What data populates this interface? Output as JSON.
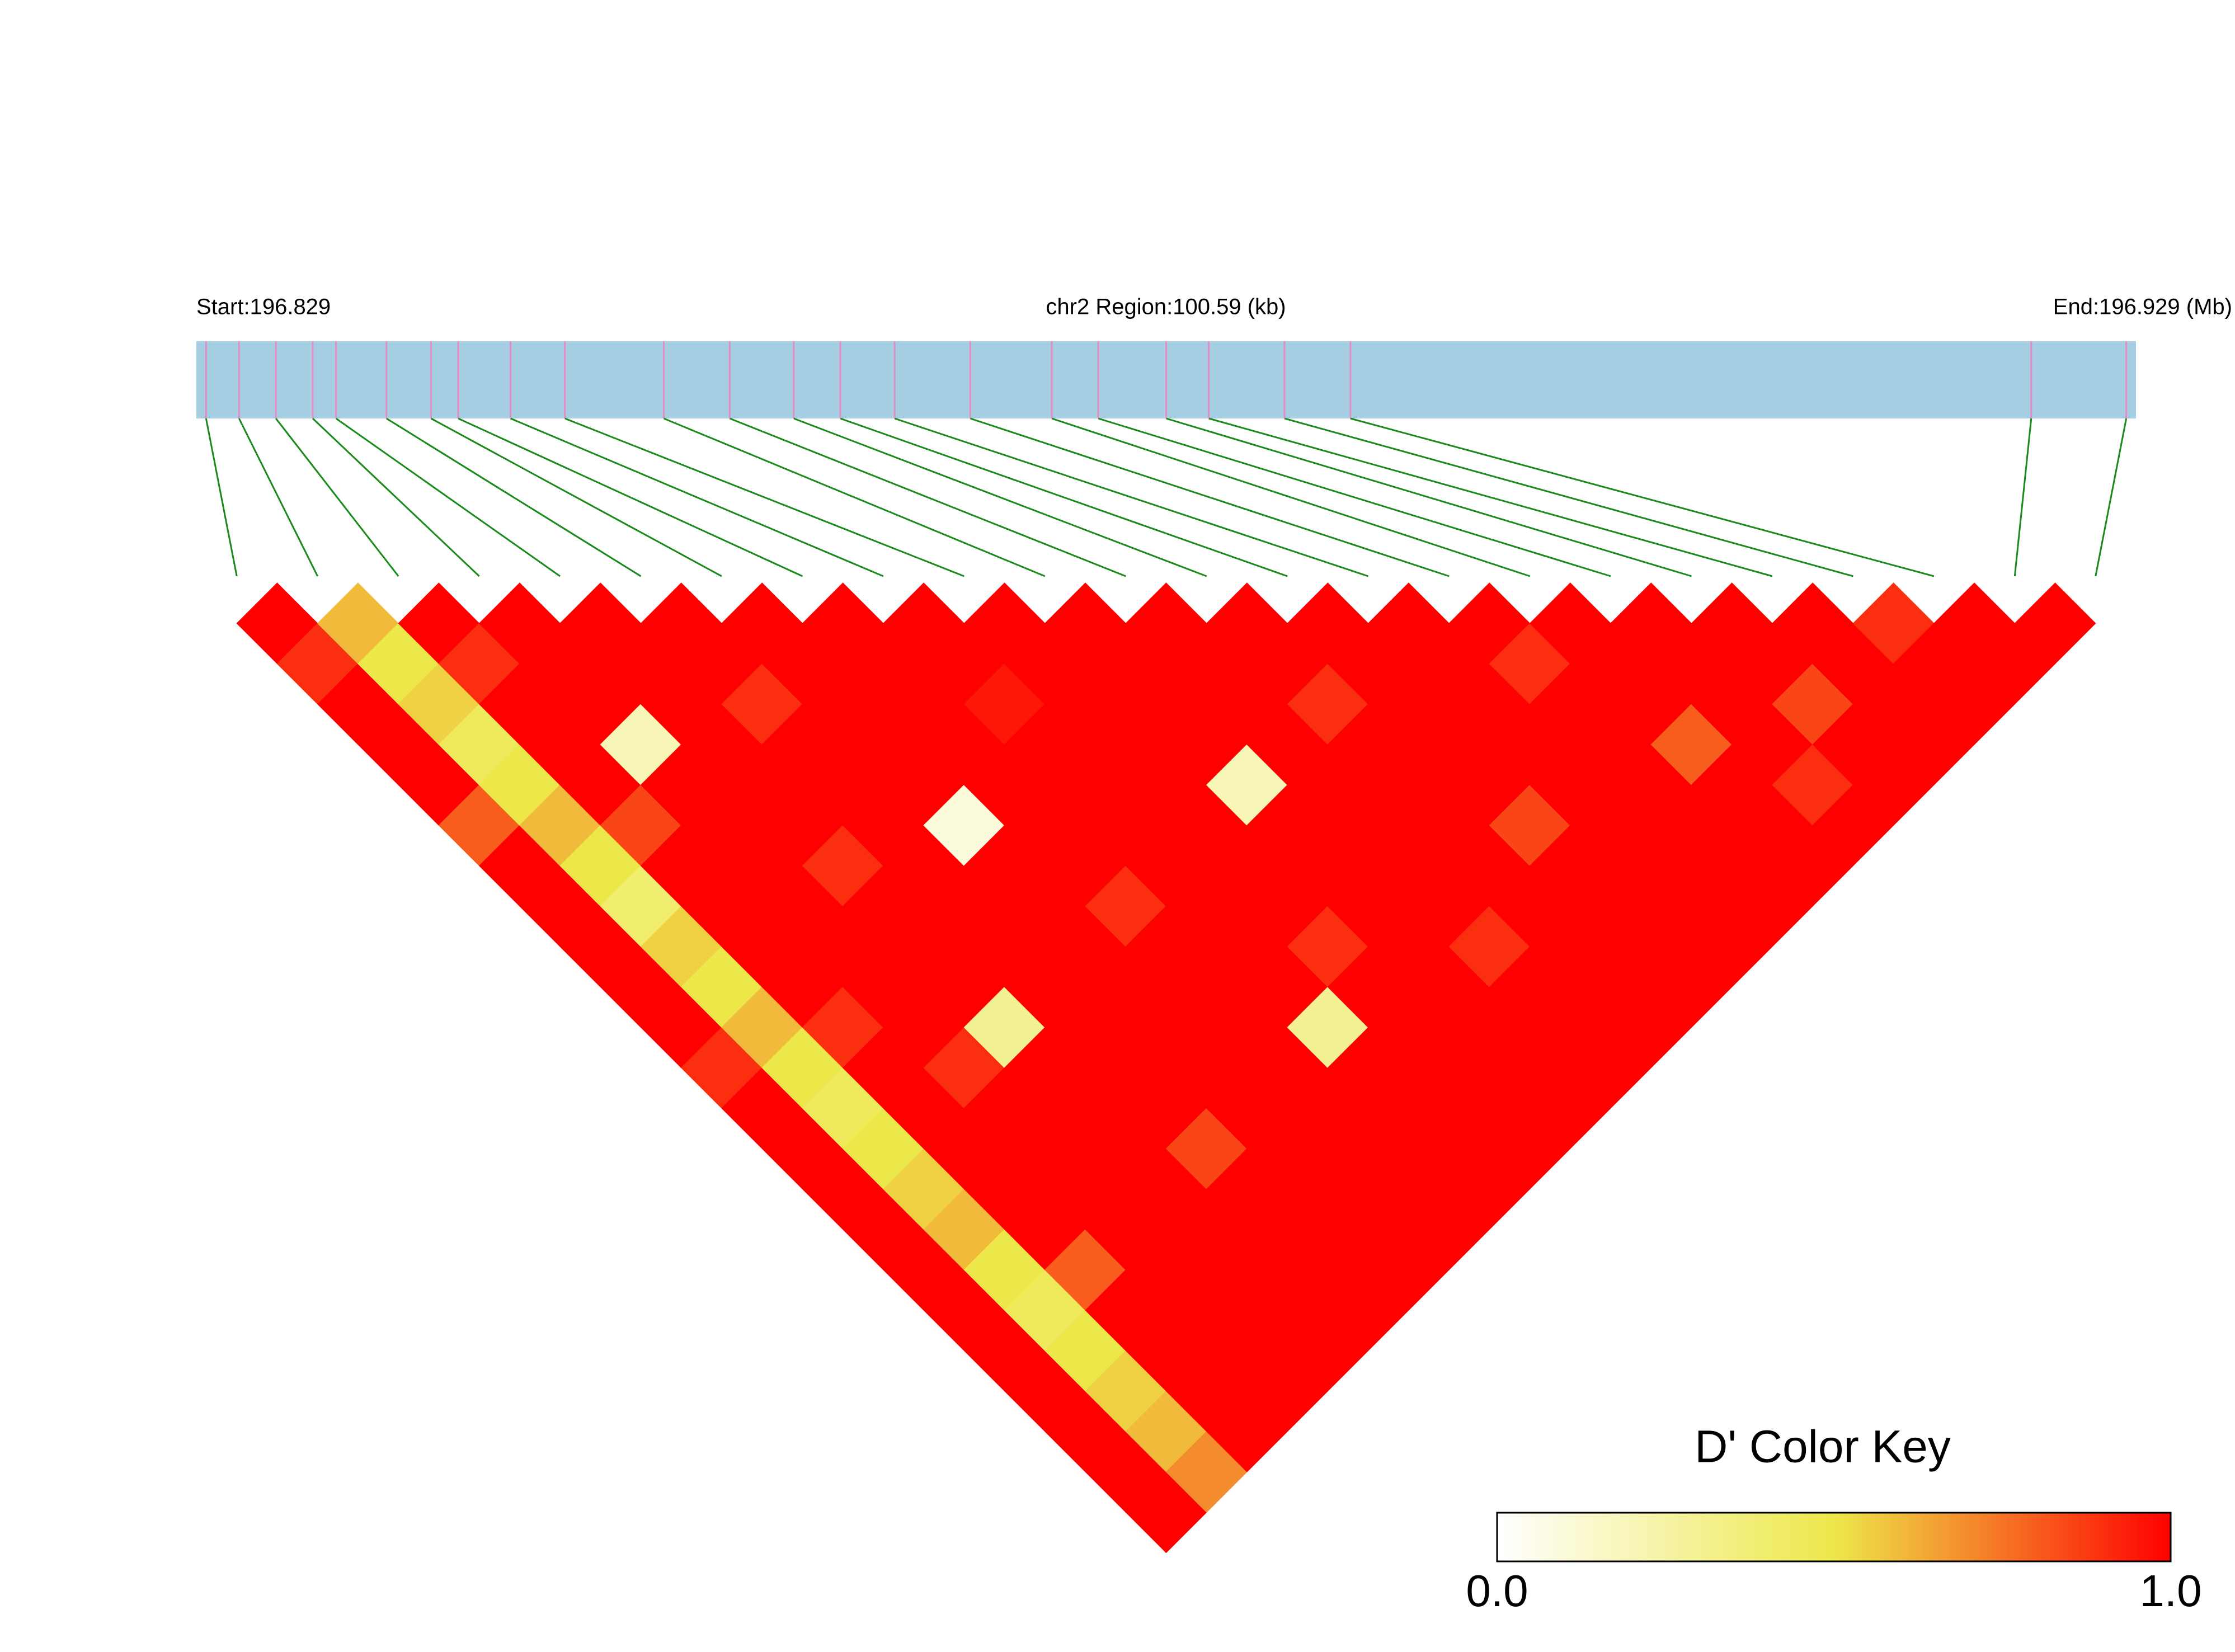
{
  "chart_data": {
    "type": "ld-heatmap",
    "start_label": "Start:196.829",
    "region_label": "chr2 Region:100.59 (kb)",
    "end_label": "End:196.929 (Mb)",
    "xlim": [
      196.829,
      196.929
    ],
    "snp_positions": [
      196.8295,
      196.8312,
      196.8331,
      196.835,
      196.8362,
      196.8388,
      196.8411,
      196.8425,
      196.8452,
      196.848,
      196.8531,
      196.8565,
      196.8598,
      196.8622,
      196.865,
      196.8689,
      196.8731,
      196.8755,
      196.879,
      196.8812,
      196.8851,
      196.8885,
      196.9236,
      196.9285
    ],
    "ld": [
      [
        1,
        0.9,
        1,
        1,
        1,
        0.8,
        1,
        1,
        1,
        1,
        1,
        0.9,
        1,
        1,
        1,
        1,
        1,
        1,
        1,
        1,
        1,
        1,
        1
      ],
      [
        0.6,
        0.5,
        0.55,
        0.45,
        0.5,
        0.6,
        0.5,
        0.4,
        0.55,
        0.5,
        0.6,
        0.5,
        0.45,
        0.5,
        0.55,
        0.6,
        0.5,
        0.45,
        0.5,
        0.55,
        0.6,
        0.7
      ],
      [
        1,
        0.9,
        1,
        1,
        1,
        0.85,
        1,
        1,
        1,
        1,
        0.9,
        1,
        1,
        1,
        1,
        1,
        0.8,
        1,
        1,
        1,
        1
      ],
      [
        1,
        1,
        1,
        0.2,
        1,
        1,
        1,
        1,
        1,
        1,
        1,
        0.9,
        1,
        1,
        1,
        1,
        1,
        1,
        1,
        1
      ],
      [
        1,
        1,
        1,
        1,
        1,
        1,
        0.9,
        1,
        1,
        1,
        0.3,
        1,
        1,
        1,
        1,
        1,
        1,
        1,
        1
      ],
      [
        1,
        1,
        0.9,
        1,
        1,
        1,
        1,
        1,
        1,
        1,
        1,
        1,
        1,
        0.85,
        1,
        1,
        1,
        1
      ],
      [
        1,
        1,
        1,
        1,
        1,
        0.1,
        1,
        1,
        1,
        1,
        1,
        1,
        1,
        1,
        1,
        1,
        1
      ],
      [
        1,
        1,
        1,
        1,
        1,
        1,
        1,
        0.9,
        1,
        1,
        1,
        1,
        1,
        1,
        1,
        1
      ],
      [
        1,
        1,
        0.95,
        1,
        1,
        1,
        1,
        1,
        1,
        1,
        0.3,
        1,
        1,
        1,
        1
      ],
      [
        1,
        1,
        1,
        1,
        1,
        1,
        1,
        1,
        0.9,
        1,
        1,
        1,
        1,
        1
      ],
      [
        1,
        1,
        1,
        1,
        0.2,
        1,
        1,
        1,
        1,
        1,
        1,
        1,
        1
      ],
      [
        1,
        1,
        1,
        1,
        1,
        1,
        1,
        1,
        0.9,
        1,
        1,
        1
      ],
      [
        1,
        1,
        0.9,
        1,
        1,
        1,
        1,
        1,
        1,
        1,
        1
      ],
      [
        1,
        1,
        1,
        1,
        1,
        0.85,
        1,
        1,
        1,
        1
      ],
      [
        1,
        1,
        1,
        1,
        1,
        1,
        1,
        1,
        1
      ],
      [
        1,
        0.9,
        1,
        1,
        1,
        1,
        1,
        1
      ],
      [
        1,
        1,
        1,
        0.8,
        1,
        1,
        1
      ],
      [
        1,
        1,
        1,
        1,
        0.9,
        1
      ],
      [
        1,
        1,
        0.85,
        1,
        1
      ],
      [
        1,
        1,
        1,
        1
      ],
      [
        0.9,
        1,
        1
      ],
      [
        1,
        1
      ],
      [
        1
      ]
    ],
    "colormap": [
      "#ffffff",
      "#ede84a",
      "#ff0000"
    ],
    "key_title": "D' Color Key",
    "key_ticks": [
      {
        "value": 0,
        "label": "0.0"
      },
      {
        "value": 1,
        "label": "1.0"
      }
    ]
  }
}
